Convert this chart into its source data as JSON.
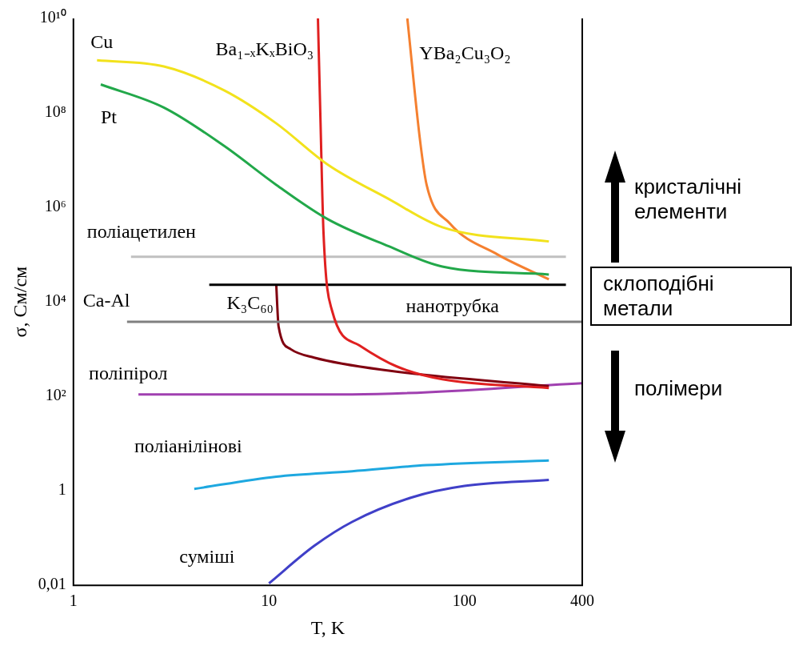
{
  "chart_data": {
    "type": "line",
    "xlabel": "T, K",
    "ylabel": "σ, См/см",
    "log": "xy",
    "grid": false,
    "legend": false,
    "xlim": [
      1,
      400
    ],
    "xticks": [
      1,
      10,
      100,
      400
    ],
    "ylim": [
      0.01,
      10000000000
    ],
    "yticks": [
      {
        "value": 0.01,
        "label": "0,01"
      },
      1,
      {
        "value": 100,
        "label": "10²"
      },
      {
        "value": 10000,
        "label": "10⁴"
      },
      {
        "value": 1000000,
        "label": "10⁶"
      },
      {
        "value": 100000000,
        "label": "10⁸"
      },
      {
        "value": 10000000000,
        "label": "10¹⁰"
      }
    ],
    "series": [
      {
        "name": "Cu",
        "color": "#f2e21c",
        "x": [
          1.32,
          2.9,
          5.9,
          10.9,
          20,
          41,
          77,
          270
        ],
        "values": [
          1300000000,
          960000000,
          300000000,
          60000000,
          8000000,
          1500000,
          380000,
          190000
        ]
      },
      {
        "name": "Pt",
        "color": "#22a84a",
        "x": [
          1.38,
          2.9,
          5.9,
          10.9,
          20,
          41,
          77,
          270
        ],
        "values": [
          400000000,
          130000000,
          20000000,
          3000000,
          560000,
          150000,
          56000,
          38000
        ]
      },
      {
        "name": "Ba₁₋ₓKₓBiO₃",
        "color": "#e02020",
        "x": [
          17.8,
          18.3,
          19,
          21,
          29,
          45,
          77,
          270
        ],
        "values": [
          10000000000,
          100000000,
          300000,
          6600,
          1200,
          430,
          230,
          150
        ]
      },
      {
        "name": "YBa₂Cu₃O₂",
        "color": "#f58030",
        "x": [
          51,
          59,
          64,
          84,
          148,
          270
        ],
        "values": [
          10000000000,
          30000000,
          3000000,
          460000,
          100000,
          30000
        ]
      },
      {
        "name": "поліацетилен",
        "color": "#c0c0c0",
        "x": [
          1.97,
          330
        ],
        "values": [
          90000,
          90000
        ]
      },
      {
        "name": "нанотрубка",
        "color": "#000000",
        "x": [
          4.95,
          330
        ],
        "values": [
          23000,
          23000
        ]
      },
      {
        "name": "Ca-Al",
        "color": "#808080",
        "x": [
          1.88,
          400
        ],
        "values": [
          3800,
          3800
        ]
      },
      {
        "name": "K₃C₆₀",
        "color": "#800010",
        "x": [
          10.9,
          11,
          11.2,
          12.9,
          17,
          41,
          270
        ],
        "values": [
          23000,
          10000,
          3000,
          1000,
          660,
          350,
          165
        ]
      },
      {
        "name": "поліпірол",
        "color": "#a040b0",
        "x": [
          2.15,
          26.6,
          400
        ],
        "values": [
          110,
          110,
          190
        ]
      },
      {
        "name": "поліанілінові",
        "color": "#1ea8e0",
        "x": [
          4.15,
          10.9,
          26.6,
          64,
          270
        ],
        "values": [
          1.1,
          2,
          2.6,
          3.5,
          4.4
        ]
      },
      {
        "name": "суміші",
        "color": "#4040c8",
        "x": [
          10,
          17,
          26.6,
          54,
          100,
          270
        ],
        "values": [
          0.011,
          0.068,
          0.22,
          0.73,
          1.27,
          1.7
        ]
      }
    ],
    "annotations": [
      "кристалічні елементи",
      "склоподібні метали",
      "полімери"
    ]
  }
}
